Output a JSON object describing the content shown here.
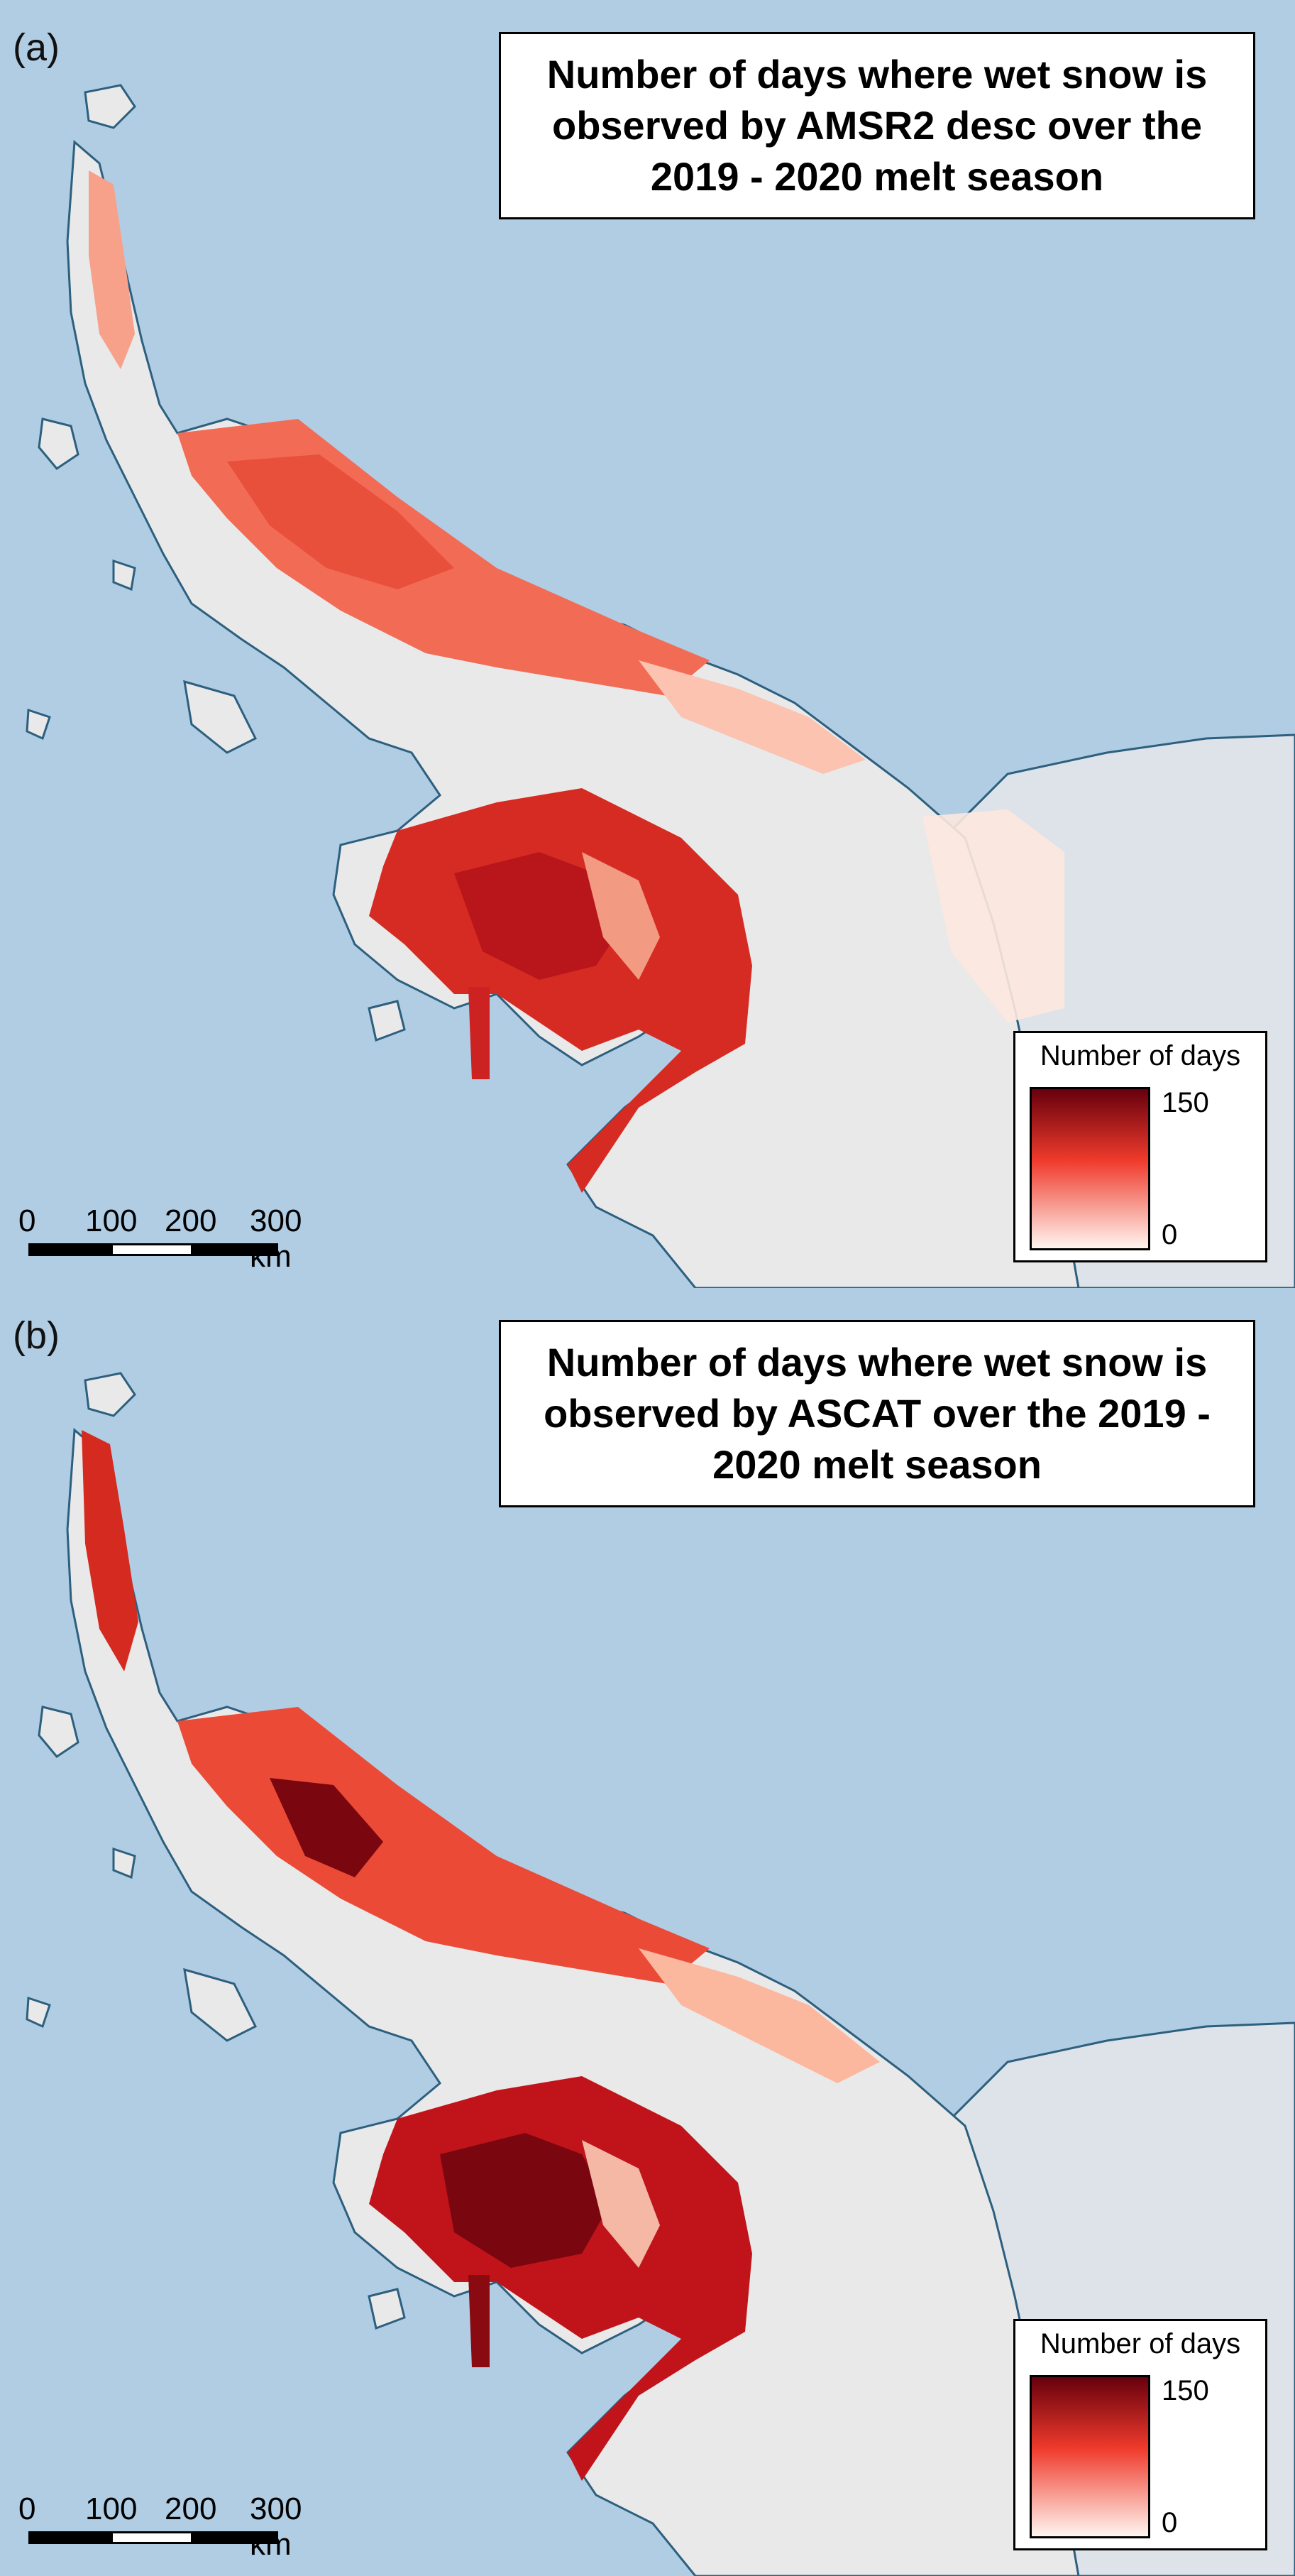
{
  "panels": [
    {
      "label": "(a)",
      "title": "Number of days where wet snow is observed by AMSR2 desc over the 2019 - 2020 melt season",
      "legend": {
        "title": "Number of days",
        "max": "150",
        "min": "0"
      },
      "scalebar": [
        "0",
        "100",
        "200",
        "300 km"
      ]
    },
    {
      "label": "(b)",
      "title": "Number of days where wet snow is observed by ASCAT over the 2019 - 2020 melt season",
      "legend": {
        "title": "Number of days",
        "max": "150",
        "min": "0"
      },
      "scalebar": [
        "0",
        "100",
        "200",
        "300 km"
      ]
    }
  ],
  "colors": {
    "ocean": "#b0cde4",
    "ice_shelf": "#dde3e8",
    "land": "#e9e9e9",
    "coastline": "#2d5f7e",
    "ramp_high": "#67000d",
    "ramp_mid": "#ef3b2c",
    "ramp_low": "#fff5f0"
  },
  "icons": [
    "panel-a-map",
    "panel-b-map"
  ]
}
